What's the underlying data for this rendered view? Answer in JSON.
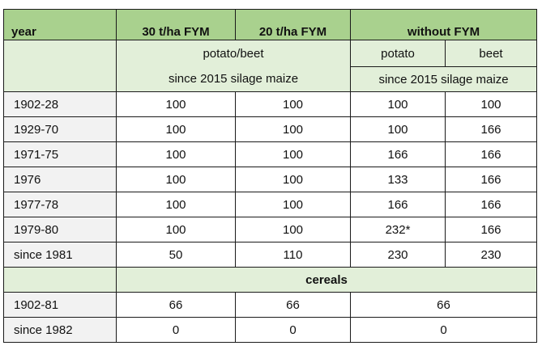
{
  "header": {
    "year": "year",
    "col1": "30 t/ha FYM",
    "col2": "20 t/ha FYM",
    "col3": "without FYM"
  },
  "subheader": {
    "potato_beet": "potato/beet",
    "potato": "potato",
    "beet": "beet",
    "since_2015_left": "since 2015 silage maize",
    "since_2015_right": "since 2015 silage maize"
  },
  "rows": [
    {
      "year": "1902-28",
      "c1": "100",
      "c2": "100",
      "c3": "100",
      "c4": "100"
    },
    {
      "year": "1929-70",
      "c1": "100",
      "c2": "100",
      "c3": "100",
      "c4": "166"
    },
    {
      "year": "1971-75",
      "c1": "100",
      "c2": "100",
      "c3": "166",
      "c4": "166"
    },
    {
      "year": "1976",
      "c1": "100",
      "c2": "100",
      "c3": "133",
      "c4": "166"
    },
    {
      "year": "1977-78",
      "c1": "100",
      "c2": "100",
      "c3": "166",
      "c4": "166"
    },
    {
      "year": "1979-80",
      "c1": "100",
      "c2": "100",
      "c3": "232*",
      "c4": "166"
    },
    {
      "year": "since 1981",
      "c1": "50",
      "c2": "110",
      "c3": "230",
      "c4": "230"
    }
  ],
  "cereals_label": "cereals",
  "cereal_rows": [
    {
      "year": "1902-81",
      "c1": "66",
      "c2": "66",
      "c3": "66"
    },
    {
      "year": "since 1982",
      "c1": "0",
      "c2": "0",
      "c3": "0"
    }
  ]
}
